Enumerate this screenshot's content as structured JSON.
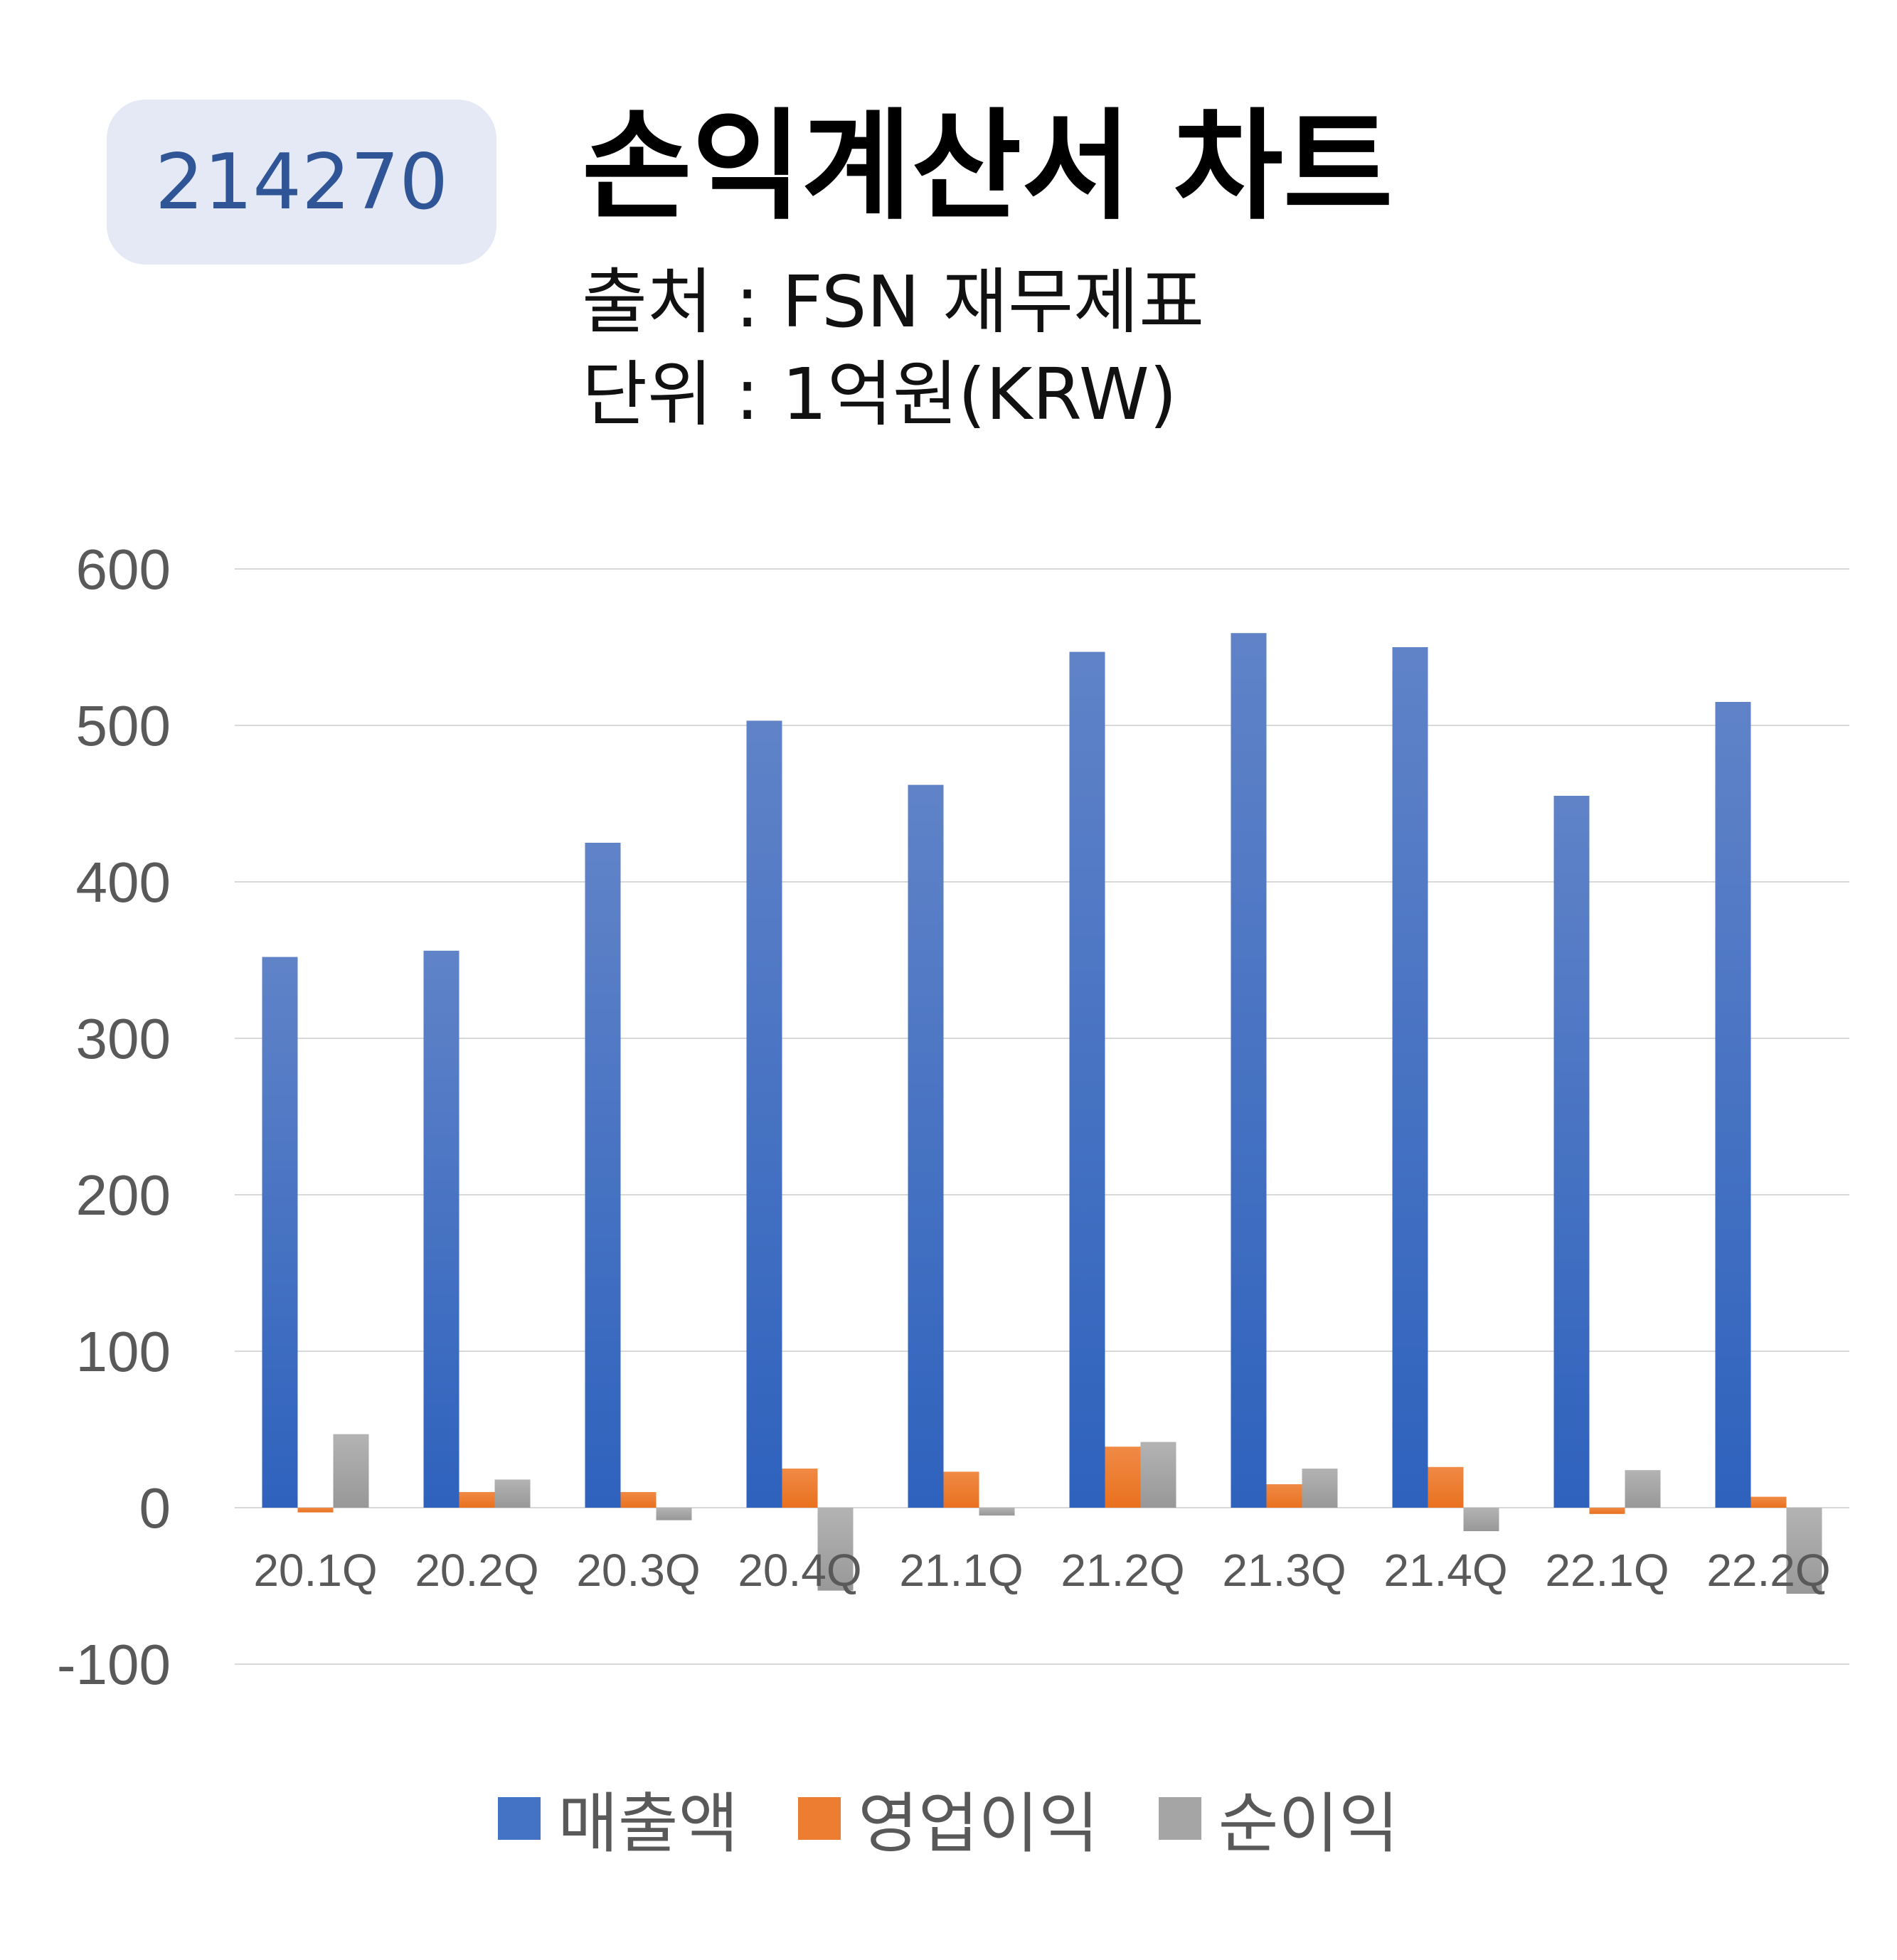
{
  "header": {
    "code": "214270",
    "title": "손익계산서 차트",
    "source": "출처 : FSN 재무제표",
    "unit": "단위 : 1억원(KRW)"
  },
  "colors": {
    "sales": "#4472c4",
    "operating_profit": "#ed7d31",
    "net_income": "#a5a5a5",
    "badge_bg": "#e4e9f5",
    "badge_text": "#2f5597"
  },
  "chart_data": {
    "type": "bar",
    "categories": [
      "20.1Q",
      "20.2Q",
      "20.3Q",
      "20.4Q",
      "21.1Q",
      "21.2Q",
      "21.3Q",
      "21.4Q",
      "22.1Q",
      "22.2Q"
    ],
    "series": [
      {
        "name": "매출액",
        "values": [
          352,
          356,
          425,
          503,
          462,
          547,
          559,
          550,
          455,
          515
        ]
      },
      {
        "name": "영업이익",
        "values": [
          -3,
          10,
          10,
          25,
          23,
          39,
          15,
          26,
          -4,
          7
        ]
      },
      {
        "name": "순이익",
        "values": [
          47,
          18,
          -8,
          -53,
          -5,
          42,
          25,
          -15,
          24,
          -55
        ]
      }
    ],
    "ylim": [
      -100,
      600
    ],
    "yticks": [
      "600",
      "500",
      "400",
      "300",
      "200",
      "100",
      "0",
      "-100"
    ],
    "grid": true,
    "legend_position": "bottom"
  }
}
